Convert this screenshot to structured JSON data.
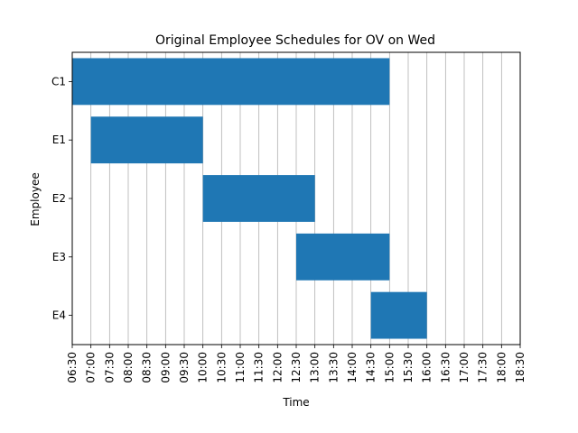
{
  "chart_data": {
    "type": "gantt",
    "title": "Original Employee Schedules for OV on Wed",
    "xlabel": "Time",
    "ylabel": "Employee",
    "x_ticks": [
      "06:30",
      "07:00",
      "07:30",
      "08:00",
      "08:30",
      "09:00",
      "09:30",
      "10:00",
      "10:30",
      "11:00",
      "11:30",
      "12:00",
      "12:30",
      "13:00",
      "13:30",
      "14:00",
      "14:30",
      "15:00",
      "15:30",
      "16:00",
      "16:30",
      "17:00",
      "17:30",
      "18:00",
      "18:30"
    ],
    "xlim": [
      "06:30",
      "18:30"
    ],
    "grid": "vertical",
    "bar_color": "#1f77b4",
    "series": [
      {
        "name": "C1",
        "start": "06:30",
        "end": "15:00"
      },
      {
        "name": "E1",
        "start": "07:00",
        "end": "10:00"
      },
      {
        "name": "E2",
        "start": "10:00",
        "end": "13:00"
      },
      {
        "name": "E3",
        "start": "12:30",
        "end": "15:00"
      },
      {
        "name": "E4",
        "start": "14:30",
        "end": "16:00"
      }
    ]
  }
}
